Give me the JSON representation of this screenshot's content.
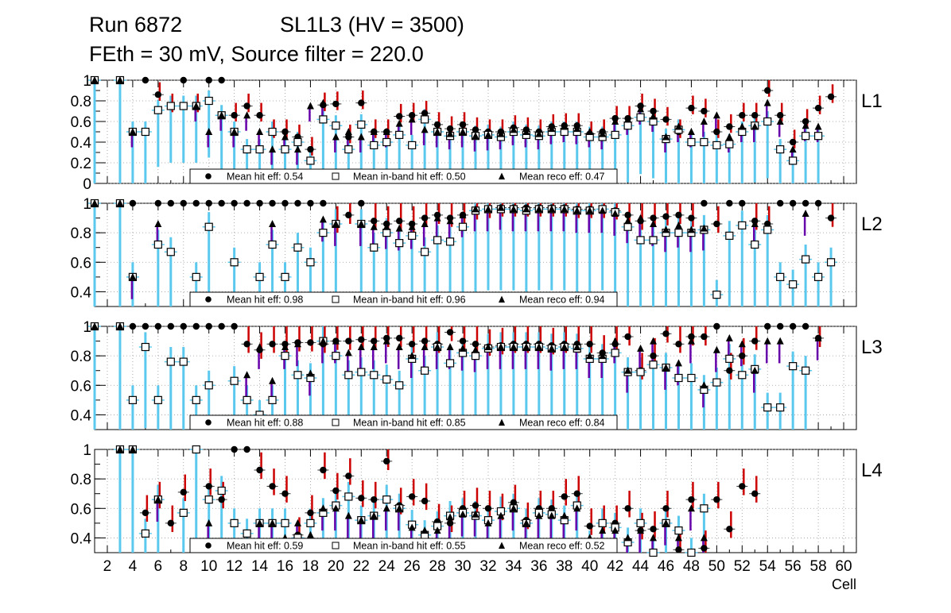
{
  "header": {
    "run": "Run 6872",
    "sl": "SL1L3 (HV = 3500)",
    "line2": "FEth = 30 mV, Source filter = 220.0"
  },
  "xaxis": {
    "label": "Cell",
    "ticks": [
      "2",
      "4",
      "6",
      "8",
      "10",
      "12",
      "14",
      "16",
      "18",
      "20",
      "22",
      "24",
      "26",
      "28",
      "30",
      "32",
      "34",
      "36",
      "38",
      "40",
      "42",
      "44",
      "46",
      "48",
      "50",
      "52",
      "54",
      "56",
      "58",
      "60"
    ]
  },
  "colors": {
    "hit_bar": "#cc0000",
    "inband_bar": "#5bc8ee",
    "reco_bar": "#6600aa",
    "grid": "#999999"
  },
  "chart_data": [
    {
      "type": "scatter",
      "panel": "L1",
      "xlim": [
        1,
        61
      ],
      "ylim": [
        0,
        1
      ],
      "yticks": [
        "0",
        "0.2",
        "0.4",
        "0.6",
        "0.8",
        "1"
      ],
      "legend": {
        "hit": "Mean hit  eff: 0.54",
        "inband": "Mean in-band hit eff: 0.50",
        "reco": "Mean reco eff: 0.47"
      },
      "x": [
        1,
        2,
        3,
        4,
        5,
        6,
        7,
        8,
        9,
        10,
        11,
        12,
        13,
        14,
        15,
        16,
        17,
        18,
        19,
        20,
        21,
        22,
        23,
        24,
        25,
        26,
        27,
        28,
        29,
        30,
        31,
        32,
        33,
        34,
        35,
        36,
        37,
        38,
        39,
        40,
        41,
        42,
        43,
        44,
        45,
        46,
        47,
        48,
        49,
        50,
        51,
        52,
        53,
        54,
        55,
        56,
        57,
        58,
        59,
        60
      ],
      "series": [
        {
          "name": "Mean hit eff",
          "values": [
            1,
            null,
            1,
            null,
            1,
            0.86,
            0.75,
            1,
            0.75,
            1,
            1,
            0.66,
            0.75,
            0.66,
            0.5,
            0.5,
            0.45,
            0.33,
            0.76,
            0.77,
            0.45,
            0.78,
            0.5,
            0.5,
            0.65,
            0.66,
            0.68,
            0.57,
            0.53,
            0.57,
            0.52,
            0.5,
            0.5,
            0.54,
            0.52,
            0.5,
            0.55,
            0.56,
            0.56,
            0.48,
            0.5,
            0.63,
            0.63,
            0.75,
            0.7,
            0.62,
            0.5,
            0.73,
            0.7,
            0.5,
            0.55,
            0.66,
            0.66,
            0.9,
            0.66,
            0.4,
            0.6,
            0.73,
            0.84,
            null
          ]
        },
        {
          "name": "Mean in-band hit eff",
          "values": [
            1,
            null,
            1,
            0.5,
            0.5,
            0.71,
            0.75,
            0.75,
            0.75,
            0.8,
            0.66,
            0.5,
            0.33,
            0.33,
            0.5,
            0.33,
            0.4,
            0.22,
            0.62,
            0.56,
            0.33,
            0.57,
            0.37,
            0.4,
            0.47,
            0.37,
            0.62,
            0.5,
            0.46,
            0.5,
            0.46,
            0.47,
            0.45,
            0.5,
            0.47,
            0.46,
            0.5,
            0.5,
            0.5,
            0.45,
            0.45,
            0.47,
            0.56,
            0.64,
            0.6,
            0.43,
            0.52,
            0.4,
            0.4,
            0.37,
            0.38,
            0.5,
            0.56,
            0.6,
            0.33,
            0.22,
            0.46,
            0.46,
            null,
            null
          ]
        },
        {
          "name": "Mean reco eff",
          "values": [
            1,
            null,
            1,
            0.5,
            null,
            null,
            null,
            null,
            0.75,
            0.5,
            0.66,
            0.5,
            0.66,
            0.5,
            0.33,
            0.45,
            0.33,
            0.75,
            0.78,
            0.45,
            0.5,
            0.45,
            0.5,
            0.5,
            0.58,
            0.62,
            0.52,
            0.5,
            0.48,
            0.5,
            0.46,
            0.47,
            0.48,
            0.52,
            0.5,
            0.48,
            0.53,
            0.55,
            0.53,
            0.5,
            0.48,
            0.6,
            0.62,
            0.72,
            0.65,
            0.45,
            0.55,
            0.5,
            0.6,
            0.66,
            0.45,
            0.55,
            0.55,
            0.78,
            0.6,
            0.33,
            0.56,
            0.55,
            null,
            null
          ]
        }
      ]
    },
    {
      "type": "scatter",
      "panel": "L2",
      "xlim": [
        1,
        61
      ],
      "ylim": [
        0.3,
        1
      ],
      "yticks": [
        "0.4",
        "0.6",
        "0.8",
        "1"
      ],
      "legend": {
        "hit": "Mean hit  eff: 0.98",
        "inband": "Mean in-band hit eff: 0.96",
        "reco": "Mean reco eff: 0.94"
      },
      "x": [
        1,
        2,
        3,
        4,
        5,
        6,
        7,
        8,
        9,
        10,
        11,
        12,
        13,
        14,
        15,
        16,
        17,
        18,
        19,
        20,
        21,
        22,
        23,
        24,
        25,
        26,
        27,
        28,
        29,
        30,
        31,
        32,
        33,
        34,
        35,
        36,
        37,
        38,
        39,
        40,
        41,
        42,
        43,
        44,
        45,
        46,
        47,
        48,
        49,
        50,
        51,
        52,
        53,
        54,
        55,
        56,
        57,
        58,
        59,
        60
      ],
      "series": [
        {
          "name": "Mean hit eff",
          "values": [
            1,
            null,
            1,
            1,
            null,
            1,
            1,
            1,
            1,
            1,
            1,
            1,
            1,
            1,
            1,
            1,
            1,
            1,
            1,
            0.86,
            0.92,
            1,
            0.88,
            0.86,
            0.88,
            0.86,
            0.9,
            0.92,
            0.9,
            0.92,
            0.95,
            0.96,
            0.97,
            0.97,
            0.97,
            0.97,
            0.97,
            0.97,
            0.96,
            0.96,
            0.96,
            0.95,
            0.92,
            0.88,
            0.9,
            0.91,
            0.92,
            0.9,
            1,
            0.86,
            1,
            1,
            0.88,
            0.86,
            1,
            1,
            1,
            1,
            0.9,
            null
          ]
        },
        {
          "name": "Mean in-band hit eff",
          "values": [
            1,
            null,
            1,
            0.5,
            null,
            0.72,
            0.67,
            null,
            0.5,
            0.84,
            null,
            0.6,
            null,
            0.5,
            0.72,
            0.5,
            0.7,
            0.6,
            0.8,
            0.86,
            null,
            0.86,
            0.7,
            0.8,
            0.73,
            0.78,
            0.67,
            0.75,
            0.74,
            0.84,
            0.95,
            0.96,
            0.96,
            0.96,
            0.95,
            0.96,
            0.96,
            0.96,
            0.95,
            0.95,
            0.96,
            0.94,
            0.84,
            0.75,
            0.75,
            0.8,
            0.8,
            0.8,
            0.82,
            0.38,
            0.78,
            0.85,
            0.72,
            0.82,
            0.5,
            0.45,
            0.62,
            0.5,
            0.6,
            null
          ]
        },
        {
          "name": "Mean reco eff",
          "values": [
            1,
            null,
            1,
            0.5,
            null,
            0.86,
            null,
            null,
            null,
            null,
            null,
            null,
            null,
            null,
            0.86,
            null,
            null,
            null,
            0.89,
            0.86,
            null,
            0.86,
            0.84,
            0.84,
            0.83,
            0.84,
            0.86,
            0.9,
            0.88,
            0.92,
            0.96,
            0.96,
            0.97,
            0.96,
            0.96,
            0.96,
            0.96,
            0.96,
            0.95,
            0.95,
            0.95,
            0.93,
            0.88,
            0.9,
            0.86,
            0.82,
            0.85,
            0.82,
            0.83,
            null,
            null,
            null,
            0.86,
            null,
            null,
            null,
            0.93,
            null,
            null,
            null
          ]
        }
      ]
    },
    {
      "type": "scatter",
      "panel": "L3",
      "xlim": [
        1,
        61
      ],
      "ylim": [
        0.3,
        1
      ],
      "yticks": [
        "0.4",
        "0.6",
        "0.8",
        "1"
      ],
      "legend": {
        "hit": "Mean hit  eff: 0.88",
        "inband": "Mean in-band hit eff: 0.85",
        "reco": "Mean reco eff: 0.84"
      },
      "x": [
        1,
        2,
        3,
        4,
        5,
        6,
        7,
        8,
        9,
        10,
        11,
        12,
        13,
        14,
        15,
        16,
        17,
        18,
        19,
        20,
        21,
        22,
        23,
        24,
        25,
        26,
        27,
        28,
        29,
        30,
        31,
        32,
        33,
        34,
        35,
        36,
        37,
        38,
        39,
        40,
        41,
        42,
        43,
        44,
        45,
        46,
        47,
        48,
        49,
        50,
        51,
        52,
        53,
        54,
        55,
        56,
        57,
        58,
        59,
        60
      ],
      "series": [
        {
          "name": "Mean hit eff",
          "values": [
            1,
            null,
            1,
            1,
            1,
            1,
            1,
            1,
            1,
            1,
            1,
            1,
            0.88,
            0.84,
            0.88,
            0.88,
            0.89,
            0.89,
            0.88,
            0.9,
            0.9,
            0.91,
            0.9,
            0.92,
            0.92,
            0.88,
            0.9,
            0.88,
            0.96,
            0.9,
            0.88,
            0.86,
            0.87,
            0.88,
            0.88,
            0.88,
            0.87,
            0.88,
            0.88,
            0.88,
            0.82,
            0.88,
            0.93,
            0.7,
            0.8,
            0.95,
            0.88,
            0.93,
            0.93,
            1,
            0.7,
            0.8,
            0.9,
            1,
            1,
            1,
            1,
            0.92,
            null,
            null
          ]
        },
        {
          "name": "Mean in-band hit eff",
          "values": [
            1,
            null,
            1,
            0.5,
            0.86,
            0.5,
            0.76,
            0.76,
            0.5,
            0.6,
            null,
            0.63,
            0.5,
            0.4,
            0.5,
            0.8,
            0.67,
            0.65,
            0.9,
            0.8,
            0.67,
            0.69,
            0.67,
            0.64,
            0.6,
            0.78,
            0.7,
            0.86,
            0.75,
            0.82,
            0.8,
            0.85,
            0.86,
            0.86,
            0.86,
            0.86,
            0.85,
            0.86,
            0.85,
            0.78,
            0.78,
            0.82,
            0.69,
            0.69,
            0.74,
            0.72,
            0.65,
            0.65,
            0.57,
            0.62,
            0.78,
            0.67,
            0.71,
            0.45,
            0.45,
            0.73,
            0.7,
            null,
            null,
            null
          ]
        },
        {
          "name": "Mean reco eff",
          "values": [
            1,
            null,
            1,
            null,
            null,
            null,
            null,
            null,
            null,
            null,
            null,
            null,
            0.67,
            0.86,
            0.63,
            0.86,
            0.88,
            0.68,
            0.9,
            0.9,
            0.82,
            0.86,
            0.86,
            0.9,
            0.86,
            0.8,
            0.86,
            0.86,
            0.86,
            0.85,
            0.84,
            0.86,
            0.86,
            0.86,
            0.86,
            0.86,
            0.85,
            0.86,
            0.86,
            0.8,
            0.8,
            0.9,
            0.7,
            0.85,
            0.9,
            0.72,
            0.75,
            0.9,
            0.6,
            0.84,
            0.92,
            0.88,
            0.7,
            0.9,
            0.9,
            null,
            null,
            0.92,
            null,
            null
          ]
        }
      ]
    },
    {
      "type": "scatter",
      "panel": "L4",
      "xlim": [
        1,
        61
      ],
      "ylim": [
        0.3,
        1
      ],
      "yticks": [
        "0.4",
        "0.6",
        "0.8",
        "1"
      ],
      "legend": {
        "hit": "Mean hit  eff: 0.59",
        "inband": "Mean in-band hit eff: 0.55",
        "reco": "Mean reco eff: 0.52"
      },
      "x": [
        1,
        2,
        3,
        4,
        5,
        6,
        7,
        8,
        9,
        10,
        11,
        12,
        13,
        14,
        15,
        16,
        17,
        18,
        19,
        20,
        21,
        22,
        23,
        24,
        25,
        26,
        27,
        28,
        29,
        30,
        31,
        32,
        33,
        34,
        35,
        36,
        37,
        38,
        39,
        40,
        41,
        42,
        43,
        44,
        45,
        46,
        47,
        48,
        49,
        50,
        51,
        52,
        53,
        54,
        55,
        56,
        57,
        58,
        59,
        60
      ],
      "series": [
        {
          "name": "Mean hit eff",
          "values": [
            null,
            null,
            1,
            1,
            0.57,
            0.66,
            0.5,
            0.71,
            1,
            0.75,
            0.66,
            1,
            1,
            0.86,
            0.75,
            0.7,
            0.42,
            0.57,
            0.86,
            0.72,
            0.82,
            0.67,
            0.66,
            0.92,
            0.62,
            0.68,
            0.65,
            0.51,
            0.5,
            0.6,
            0.62,
            0.6,
            0.58,
            0.64,
            0.52,
            0.6,
            0.6,
            0.68,
            0.7,
            0.48,
            0.5,
            0.5,
            0.6,
            0.45,
            0.46,
            0.6,
            0.32,
            0.66,
            0.33,
            0.66,
            0.46,
            0.75,
            0.7,
            null,
            null,
            null,
            null,
            null,
            null,
            null
          ]
        },
        {
          "name": "Mean in-band hit eff",
          "values": [
            null,
            null,
            1,
            1,
            0.43,
            0.66,
            null,
            0.57,
            1,
            0.66,
            0.72,
            0.5,
            0.43,
            0.5,
            0.5,
            0.5,
            0.4,
            0.5,
            0.57,
            0.62,
            0.68,
            0.52,
            0.55,
            0.66,
            0.6,
            0.49,
            0.42,
            0.48,
            0.55,
            0.57,
            0.55,
            0.52,
            0.58,
            0.6,
            0.5,
            0.57,
            0.56,
            0.52,
            0.62,
            0.35,
            0.5,
            0.47,
            0.37,
            0.5,
            0.3,
            0.5,
            0.45,
            0.3,
            0.6,
            null,
            null,
            null,
            null,
            null,
            null,
            null,
            null,
            null,
            null,
            null
          ]
        },
        {
          "name": "Mean reco eff",
          "values": [
            null,
            null,
            1,
            1,
            null,
            0.66,
            null,
            null,
            null,
            0.5,
            null,
            null,
            null,
            0.5,
            0.5,
            0.4,
            0.5,
            0.42,
            0.6,
            0.6,
            0.55,
            0.52,
            0.55,
            0.6,
            0.6,
            0.47,
            0.45,
            0.45,
            0.54,
            0.56,
            0.56,
            0.5,
            0.55,
            0.6,
            0.5,
            0.55,
            0.55,
            0.55,
            0.6,
            0.4,
            0.45,
            0.45,
            0.4,
            0.45,
            0.4,
            0.5,
            0.4,
            0.6,
            0.4,
            null,
            null,
            null,
            null,
            null,
            null,
            null,
            null,
            null,
            null,
            null
          ]
        }
      ]
    }
  ]
}
